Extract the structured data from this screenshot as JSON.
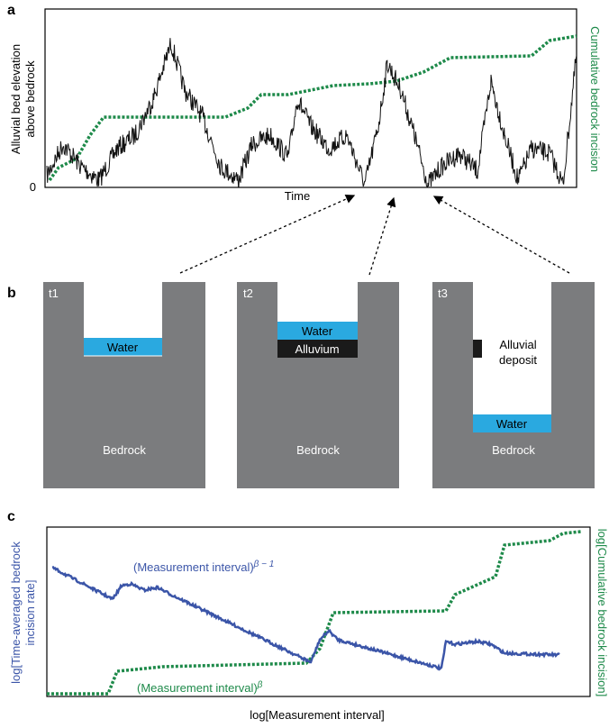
{
  "panels": {
    "a": {
      "label": "a",
      "y_label": [
        "Alluvial bed elevation",
        "above bedrock"
      ],
      "y_zero": "0",
      "x_label": "Time",
      "y2_label": "Cumulative bedrock incision"
    },
    "b": {
      "label": "b",
      "blocks": [
        {
          "time": "t1",
          "water": "Water",
          "bedrock": "Bedrock"
        },
        {
          "time": "t2",
          "water": "Water",
          "alluvium": "Alluvium",
          "bedrock": "Bedrock"
        },
        {
          "time": "t3",
          "deposit": [
            "Alluvial",
            "deposit"
          ],
          "water": "Water",
          "bedrock": "Bedrock"
        }
      ]
    },
    "c": {
      "label": "c",
      "y_label": [
        "log[Time-averaged bedrock",
        "incision rate]"
      ],
      "y2_label": "log[Cumulative bedrock incision]",
      "x_label": "log[Measurement interval]",
      "rate_label": {
        "text": "(Measurement interval)",
        "exponent": "β − 1"
      },
      "cumulative_label": {
        "text": "(Measurement interval)",
        "exponent": "β"
      }
    }
  }
}
